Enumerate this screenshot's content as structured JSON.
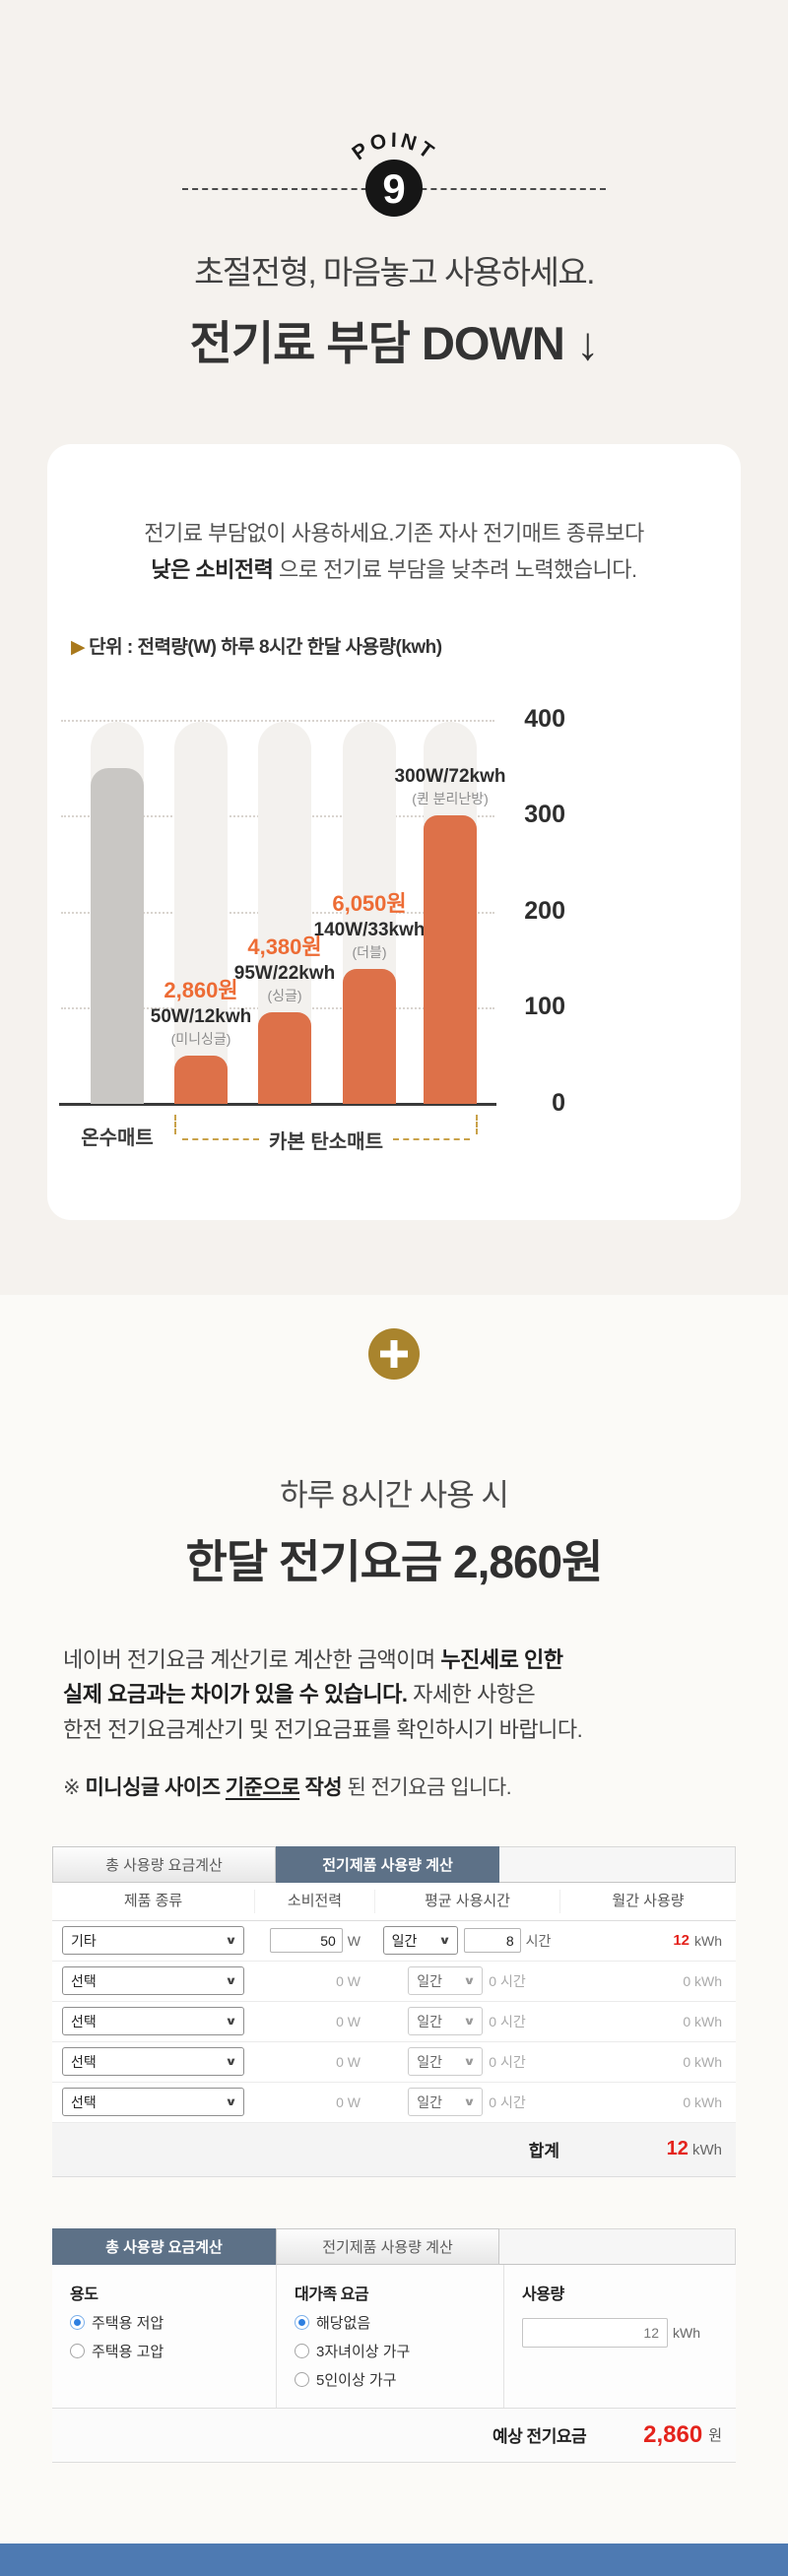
{
  "colors": {
    "accent_orange": "#ed6c35",
    "bar_orange": "#dd7149",
    "bar_gray": "#c9c7c4",
    "gold_plus": "#a9842d",
    "bracket_gold": "#c9a24b",
    "tab_active": "#5d7187",
    "value_red": "#e4231c",
    "radio_blue": "#2e7fe0",
    "bottom_strip_blue": "#4e7ab2",
    "bg_top": "#f5f2ee",
    "bg_bottom": "#fbfaf7"
  },
  "point": {
    "label": "POINT",
    "number": "9"
  },
  "intro": {
    "subtitle": "초절전형, 마음놓고 사용하세요.",
    "title": "전기료 부담 DOWN ↓"
  },
  "card": {
    "desc_line1": "전기료 부담없이 사용하세요.기존 자사 전기매트 종류보다",
    "desc_line2_bold": "낮은 소비전력",
    "desc_line2_rest": " 으로 전기료 부담을 낮추려 노력했습니다."
  },
  "chart_data": {
    "type": "bar",
    "title": "단위 : 전력량(W) 하루 8시간 한달 사용량(kwh)",
    "title_arrow": "▶",
    "ylim": [
      0,
      400
    ],
    "yticks": [
      400,
      300,
      200,
      100,
      0
    ],
    "grid": "dotted horizontal",
    "legend": "none",
    "categories": [
      "온수매트",
      "카본 탄소매트 (미니싱글)",
      "카본 탄소매트 (싱글)",
      "카본 탄소매트 (더블)",
      "카본 탄소매트 (퀸 분리난방)"
    ],
    "values": [
      350,
      50,
      95,
      140,
      300
    ],
    "bars": [
      {
        "category": "온수매트",
        "value": 350,
        "color": "gray",
        "price": "",
        "spec": "",
        "size": ""
      },
      {
        "category": "카본 탄소매트 (미니싱글)",
        "value": 50,
        "color": "orange",
        "price": "2,860원",
        "spec": "50W/12kwh",
        "size": "(미니싱글)"
      },
      {
        "category": "카본 탄소매트 (싱글)",
        "value": 95,
        "color": "orange",
        "price": "4,380원",
        "spec": "95W/22kwh",
        "size": "(싱글)"
      },
      {
        "category": "카본 탄소매트 (더블)",
        "value": 140,
        "color": "orange",
        "price": "6,050원",
        "spec": "140W/33kwh",
        "size": "(더블)"
      },
      {
        "category": "카본 탄소매트 (퀸 분리난방)",
        "value": 300,
        "color": "orange",
        "price": "",
        "spec": "300W/72kwh",
        "size": "(퀸 분리난방)"
      }
    ],
    "x_axis_groups": {
      "first": "온수매트",
      "second": "카본 탄소매트"
    }
  },
  "monthly": {
    "subtitle": "하루 8시간 사용 시",
    "title": "한달 전기요금 2,860원"
  },
  "notice": {
    "l1a": "네이버 전기요금 계산기로 계산한 금액이며 ",
    "l1b": "누진세로 인한",
    "l2a": "실제 요금과는 차이가 있을 수 있습니다.",
    "l2b": " 자세한 사항은",
    "l3": "한전 전기요금계산기 및 전기요금표를 확인하시기 바랍니다."
  },
  "note": {
    "p1": "※ ",
    "p2": "미니싱글 사이즈 ",
    "p3": "기준으로",
    "p4": " 작성",
    "p5": " 된 전기요금 입니다."
  },
  "calc1": {
    "tabs": [
      {
        "label": "총 사용량 요금계산",
        "active": false
      },
      {
        "label": "전기제품 사용량 계산",
        "active": true
      }
    ],
    "headers": [
      "제품 종류",
      "소비전력",
      "평균 사용시간",
      "월간 사용량"
    ],
    "units": {
      "power": "W",
      "hours": "시간",
      "usage": "kWh"
    },
    "rows": [
      {
        "product": "기타",
        "power": "50",
        "period": "일간",
        "hours": "8",
        "usage": "12",
        "active": true
      },
      {
        "product": "선택",
        "power": "0",
        "period": "일간",
        "hours": "0",
        "usage": "0",
        "active": false
      },
      {
        "product": "선택",
        "power": "0",
        "period": "일간",
        "hours": "0",
        "usage": "0",
        "active": false
      },
      {
        "product": "선택",
        "power": "0",
        "period": "일간",
        "hours": "0",
        "usage": "0",
        "active": false
      },
      {
        "product": "선택",
        "power": "0",
        "period": "일간",
        "hours": "0",
        "usage": "0",
        "active": false
      }
    ],
    "total": {
      "label": "합계",
      "value": "12",
      "unit": "kWh"
    }
  },
  "calc2": {
    "tabs": [
      {
        "label": "총 사용량 요금계산",
        "active": true
      },
      {
        "label": "전기제품 사용량 계산",
        "active": false
      }
    ],
    "groups": [
      {
        "title": "용도",
        "options": [
          {
            "label": "주택용 저압",
            "checked": true
          },
          {
            "label": "주택용 고압",
            "checked": false
          }
        ]
      },
      {
        "title": "대가족 요금",
        "options": [
          {
            "label": "해당없음",
            "checked": true
          },
          {
            "label": "3자녀이상 가구",
            "checked": false
          },
          {
            "label": "5인이상 가구",
            "checked": false
          }
        ]
      }
    ],
    "usage": {
      "title": "사용량",
      "value": "12",
      "unit": "kWh"
    },
    "result": {
      "label": "예상 전기요금",
      "value": "2,860",
      "unit": "원"
    }
  }
}
